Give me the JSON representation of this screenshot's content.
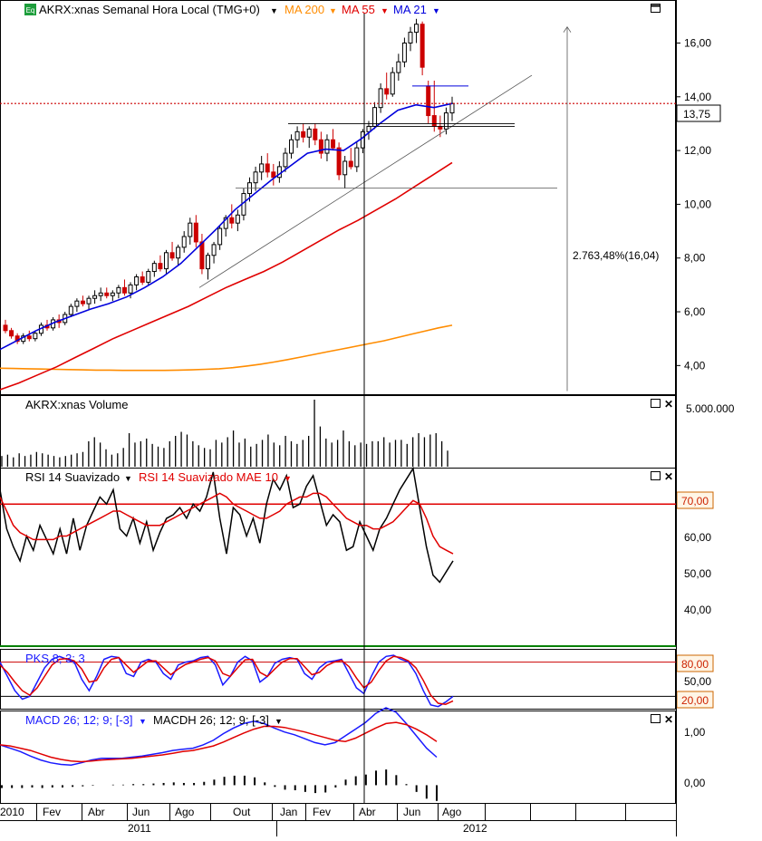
{
  "colors": {
    "price_up": "#000000",
    "price_down": "#cc0000",
    "ma200": "#ff8c00",
    "ma55": "#e00000",
    "ma21": "#0000dd",
    "rsi": "#000000",
    "rsi_ma": "#e00000",
    "macd": "#1a1aff",
    "signal": "#e00000",
    "badge_bg": "#fff5e6",
    "badge_border": "#cc6600",
    "badge_text": "#cc2200",
    "grid": "#000000"
  },
  "panels": {
    "price": {
      "symbol_badge": "Eq",
      "title": "AKRX:xnas Semanal Hora Local (TMG+0)",
      "legend": [
        {
          "label": "MA 200",
          "color": "#ff8c00"
        },
        {
          "label": "MA 55",
          "color": "#e00000"
        },
        {
          "label": "MA 21",
          "color": "#0000dd"
        }
      ],
      "y_ticks": [
        "16,00",
        "14,00",
        "12,00",
        "10,00",
        "8,00",
        "6,00",
        "4,00"
      ],
      "last_price": "13,75",
      "annotation": "2.763,48%(16,04)"
    },
    "volume": {
      "title": "AKRX:xnas Volume",
      "y_ticks": [
        "5.000.000"
      ]
    },
    "rsi": {
      "title": "RSI 14 Suavizado",
      "ma_title": "RSI 14 Suavizado MAE 10",
      "y_ticks": [
        "60,00",
        "50,00",
        "40,00"
      ],
      "level_badge": "70,00"
    },
    "stoch": {
      "title": "PKS 8; 3; 3",
      "y_ticks": [
        "50,00"
      ],
      "upper_badge": "80,00",
      "lower_badge": "20,00"
    },
    "macd": {
      "title": "MACD 26; 12; 9; [-3]",
      "hist_title": "MACDH 26; 12; 9; [-3]",
      "y_ticks": [
        "1,00",
        "0,00"
      ]
    }
  },
  "time_axis": {
    "months": [
      "2010",
      "Fev",
      "Abr",
      "Jun",
      "Ago",
      "Out",
      "Jan",
      "Fev",
      "Abr",
      "Jun",
      "Ago"
    ],
    "years": [
      "2011",
      "2012"
    ]
  },
  "chart_data": {
    "type": "line",
    "frequency": "weekly",
    "price_ylim": [
      3.0,
      17.5
    ],
    "last_price": 13.75,
    "ohlc_approx": [
      [
        5.5,
        5.7,
        5.2,
        5.3
      ],
      [
        5.3,
        5.4,
        5.0,
        5.1
      ],
      [
        5.1,
        5.2,
        4.8,
        4.9
      ],
      [
        4.9,
        5.2,
        4.8,
        5.1
      ],
      [
        5.1,
        5.3,
        4.9,
        5.0
      ],
      [
        5.0,
        5.3,
        4.9,
        5.2
      ],
      [
        5.2,
        5.6,
        5.1,
        5.5
      ],
      [
        5.5,
        5.7,
        5.3,
        5.4
      ],
      [
        5.4,
        5.8,
        5.3,
        5.7
      ],
      [
        5.7,
        5.9,
        5.4,
        5.6
      ],
      [
        5.6,
        6.0,
        5.5,
        5.9
      ],
      [
        5.9,
        6.3,
        5.8,
        6.2
      ],
      [
        6.2,
        6.5,
        6.0,
        6.4
      ],
      [
        6.4,
        6.6,
        6.2,
        6.3
      ],
      [
        6.3,
        6.6,
        6.1,
        6.5
      ],
      [
        6.5,
        6.8,
        6.3,
        6.6
      ],
      [
        6.6,
        6.9,
        6.4,
        6.7
      ],
      [
        6.7,
        6.9,
        6.5,
        6.6
      ],
      [
        6.6,
        6.8,
        6.4,
        6.7
      ],
      [
        6.7,
        7.0,
        6.5,
        6.9
      ],
      [
        6.9,
        7.2,
        6.6,
        6.7
      ],
      [
        6.7,
        7.1,
        6.5,
        7.0
      ],
      [
        7.0,
        7.4,
        6.8,
        7.3
      ],
      [
        7.3,
        7.5,
        7.0,
        7.1
      ],
      [
        7.1,
        7.6,
        7.0,
        7.5
      ],
      [
        7.5,
        7.9,
        7.3,
        7.8
      ],
      [
        7.8,
        8.1,
        7.5,
        7.6
      ],
      [
        7.6,
        8.3,
        7.4,
        8.2
      ],
      [
        8.2,
        8.6,
        7.9,
        8.0
      ],
      [
        8.0,
        8.5,
        7.7,
        8.4
      ],
      [
        8.4,
        9.0,
        8.2,
        8.8
      ],
      [
        8.8,
        9.5,
        8.5,
        9.3
      ],
      [
        9.3,
        9.6,
        8.4,
        8.6
      ],
      [
        8.6,
        8.9,
        7.4,
        7.6
      ],
      [
        7.6,
        8.2,
        7.2,
        8.1
      ],
      [
        8.1,
        8.6,
        7.8,
        8.5
      ],
      [
        8.5,
        9.2,
        8.3,
        9.1
      ],
      [
        9.1,
        9.6,
        8.8,
        9.5
      ],
      [
        9.5,
        10.0,
        9.1,
        9.3
      ],
      [
        9.3,
        9.8,
        9.0,
        9.6
      ],
      [
        9.6,
        10.6,
        9.4,
        10.4
      ],
      [
        10.4,
        11.0,
        10.1,
        10.8
      ],
      [
        10.8,
        11.4,
        10.5,
        11.2
      ],
      [
        11.2,
        11.8,
        10.9,
        11.5
      ],
      [
        11.5,
        11.9,
        11.0,
        11.2
      ],
      [
        11.2,
        11.5,
        10.7,
        11.0
      ],
      [
        11.0,
        11.6,
        10.8,
        11.4
      ],
      [
        11.4,
        12.1,
        11.2,
        11.9
      ],
      [
        11.9,
        12.6,
        11.7,
        12.4
      ],
      [
        12.4,
        12.9,
        12.1,
        12.7
      ],
      [
        12.7,
        13.0,
        12.3,
        12.5
      ],
      [
        12.5,
        12.9,
        12.1,
        12.8
      ],
      [
        12.8,
        13.0,
        12.2,
        12.4
      ],
      [
        12.4,
        12.7,
        11.7,
        11.9
      ],
      [
        11.9,
        12.6,
        11.6,
        12.4
      ],
      [
        12.4,
        12.8,
        12.0,
        12.1
      ],
      [
        12.1,
        12.3,
        10.9,
        11.1
      ],
      [
        11.1,
        11.8,
        10.6,
        11.6
      ],
      [
        11.6,
        12.1,
        11.3,
        11.4
      ],
      [
        11.4,
        12.3,
        11.2,
        12.1
      ],
      [
        12.1,
        12.8,
        11.9,
        12.7
      ],
      [
        12.7,
        13.1,
        12.4,
        12.9
      ],
      [
        12.9,
        13.8,
        12.8,
        13.6
      ],
      [
        13.6,
        14.5,
        13.4,
        14.3
      ],
      [
        14.3,
        14.9,
        13.9,
        14.1
      ],
      [
        14.1,
        15.1,
        14.0,
        14.9
      ],
      [
        14.9,
        15.6,
        14.6,
        15.3
      ],
      [
        15.3,
        16.2,
        15.1,
        16.0
      ],
      [
        16.0,
        16.6,
        15.7,
        16.4
      ],
      [
        16.4,
        16.9,
        16.0,
        16.7
      ],
      [
        16.7,
        16.8,
        14.8,
        15.1
      ],
      [
        14.4,
        14.6,
        13.0,
        13.3
      ],
      [
        13.3,
        14.6,
        12.7,
        12.9
      ],
      [
        12.9,
        13.3,
        12.5,
        12.8
      ],
      [
        12.8,
        13.6,
        12.6,
        13.4
      ],
      [
        13.4,
        14.0,
        13.1,
        13.75
      ]
    ],
    "series": [
      {
        "name": "MA 200",
        "values": [
          3.9,
          3.89,
          3.88,
          3.87,
          3.86,
          3.85,
          3.84,
          3.83,
          3.83,
          3.82,
          3.82,
          3.82,
          3.82,
          3.83,
          3.84,
          3.86,
          3.88,
          3.92,
          3.98,
          4.05,
          4.13,
          4.22,
          4.32,
          4.42,
          4.52,
          4.62,
          4.72,
          4.82,
          4.92,
          5.04,
          5.16,
          5.28,
          5.4,
          5.5
        ]
      },
      {
        "name": "MA 55",
        "values": [
          3.1,
          3.35,
          3.65,
          3.95,
          4.3,
          4.65,
          5.0,
          5.3,
          5.6,
          5.9,
          6.2,
          6.55,
          6.9,
          7.2,
          7.5,
          7.85,
          8.25,
          8.65,
          9.05,
          9.4,
          9.8,
          10.2,
          10.65,
          11.1,
          11.55
        ]
      },
      {
        "name": "MA 21",
        "values": [
          4.6,
          4.95,
          5.3,
          5.6,
          5.85,
          6.1,
          6.3,
          6.55,
          6.9,
          7.3,
          7.8,
          8.45,
          9.1,
          9.8,
          10.35,
          10.9,
          11.4,
          11.9,
          12.05,
          12.0,
          12.45,
          13.0,
          13.5,
          13.7,
          13.6,
          13.75
        ]
      }
    ],
    "lines": {
      "resistance_1": 13.0,
      "resistance_2": 12.9,
      "support": 10.6,
      "red_dotted_level": 13.75,
      "blue_level": 14.4
    },
    "annotation_pct": 2763.48,
    "annotation_value": 16.04,
    "volume": {
      "ymax": 5000000,
      "values": [
        800000,
        900000,
        700000,
        1000000,
        800000,
        900000,
        1100000,
        1000000,
        900000,
        800000,
        700000,
        800000,
        900000,
        1000000,
        1100000,
        1900000,
        2200000,
        1800000,
        1300000,
        900000,
        1000000,
        1400000,
        2500000,
        1800000,
        1900000,
        2100000,
        1700000,
        1500000,
        1400000,
        1900000,
        2300000,
        2600000,
        2400000,
        1900000,
        1600000,
        1400000,
        1300000,
        2000000,
        1800000,
        2200000,
        2700000,
        1800000,
        2100000,
        1500000,
        1700000,
        2000000,
        2400000,
        1800000,
        1600000,
        2300000,
        1900000,
        1700000,
        2000000,
        2300000,
        5000000,
        3000000,
        2100000,
        1800000,
        2000000,
        2700000,
        1900000,
        1600000,
        1800000,
        1700000,
        1900000,
        1900000,
        2200000,
        1800000,
        2000000,
        2000000,
        1700000,
        2200000,
        2500000,
        2200000,
        2400000,
        2500000,
        1900000,
        1200000
      ]
    },
    "rsi": {
      "ylim": [
        30,
        80
      ],
      "level": 70,
      "values": [
        74,
        63,
        58,
        54,
        61,
        57,
        64,
        60,
        56,
        63,
        56,
        66,
        57,
        64,
        68,
        72,
        70,
        74,
        63,
        61,
        66,
        59,
        65,
        57,
        62,
        66,
        67,
        69,
        66,
        70,
        68,
        72,
        79,
        66,
        56,
        69,
        67,
        61,
        66,
        59,
        70,
        77,
        74,
        78,
        69,
        70,
        75,
        78,
        71,
        64,
        67,
        65,
        57,
        58,
        65,
        61,
        57,
        63,
        66,
        70,
        74,
        77,
        80,
        69,
        58,
        50,
        48,
        51,
        54
      ],
      "ma_values": [
        72,
        68,
        64,
        62,
        61,
        60,
        60,
        60,
        60,
        61,
        61,
        62,
        63,
        64,
        65,
        66,
        67,
        68,
        68,
        67,
        66,
        65,
        64,
        64,
        64,
        65,
        66,
        67,
        68,
        69,
        70,
        71,
        72,
        73,
        72,
        70,
        69,
        68,
        67,
        66,
        66,
        67,
        68,
        70,
        71,
        72,
        72,
        73,
        73,
        72,
        70,
        68,
        66,
        65,
        64,
        64,
        63,
        63,
        64,
        65,
        67,
        69,
        71,
        70,
        66,
        61,
        58,
        57,
        56
      ]
    },
    "stochastic": {
      "ylim": [
        0,
        100
      ],
      "levels": [
        80,
        20
      ],
      "k": [
        80,
        55,
        30,
        15,
        20,
        45,
        70,
        85,
        90,
        85,
        80,
        50,
        30,
        55,
        85,
        90,
        88,
        60,
        55,
        80,
        85,
        80,
        60,
        50,
        75,
        80,
        82,
        88,
        90,
        75,
        40,
        55,
        80,
        90,
        82,
        45,
        55,
        78,
        85,
        88,
        85,
        60,
        50,
        70,
        80,
        82,
        85,
        60,
        35,
        25,
        55,
        80,
        90,
        92,
        85,
        80,
        60,
        30,
        5,
        2,
        10,
        20
      ],
      "d": [
        75,
        62,
        45,
        30,
        22,
        35,
        55,
        75,
        85,
        86,
        82,
        68,
        45,
        48,
        70,
        85,
        88,
        75,
        62,
        72,
        82,
        82,
        70,
        58,
        68,
        76,
        80,
        85,
        88,
        82,
        60,
        55,
        70,
        84,
        85,
        62,
        55,
        68,
        80,
        86,
        86,
        72,
        58,
        62,
        74,
        80,
        83,
        72,
        52,
        35,
        45,
        65,
        82,
        90,
        88,
        82,
        70,
        48,
        22,
        8,
        6,
        12
      ]
    },
    "macd": {
      "ylim": [
        -0.3,
        1.3
      ],
      "macd_values": [
        0.72,
        0.66,
        0.6,
        0.52,
        0.45,
        0.4,
        0.37,
        0.36,
        0.4,
        0.45,
        0.48,
        0.48,
        0.48,
        0.5,
        0.52,
        0.55,
        0.58,
        0.62,
        0.64,
        0.66,
        0.72,
        0.8,
        0.92,
        1.02,
        1.1,
        1.14,
        1.1,
        1.02,
        0.95,
        0.9,
        0.83,
        0.76,
        0.72,
        0.76,
        0.88,
        1.0,
        1.12,
        1.28,
        1.38,
        1.3,
        1.1,
        0.88,
        0.66,
        0.5
      ],
      "signal_values": [
        0.72,
        0.7,
        0.66,
        0.62,
        0.56,
        0.5,
        0.46,
        0.43,
        0.42,
        0.43,
        0.45,
        0.46,
        0.47,
        0.48,
        0.5,
        0.52,
        0.54,
        0.57,
        0.6,
        0.62,
        0.66,
        0.7,
        0.77,
        0.85,
        0.93,
        1.0,
        1.05,
        1.05,
        1.03,
        0.99,
        0.95,
        0.9,
        0.85,
        0.8,
        0.78,
        0.84,
        0.93,
        1.02,
        1.1,
        1.12,
        1.08,
        1.0,
        0.9,
        0.78
      ],
      "hist_values": [
        -0.05,
        -0.05,
        -0.05,
        -0.04,
        -0.05,
        -0.04,
        -0.04,
        -0.03,
        -0.02,
        -0.01,
        0.0,
        0.01,
        0.01,
        0.02,
        0.02,
        0.03,
        0.04,
        0.05,
        0.04,
        0.04,
        0.06,
        0.1,
        0.15,
        0.17,
        0.17,
        0.14,
        0.05,
        -0.03,
        -0.08,
        -0.09,
        -0.12,
        -0.14,
        -0.13,
        -0.04,
        0.1,
        0.16,
        0.19,
        0.26,
        0.28,
        0.18,
        0.02,
        -0.12,
        -0.24,
        -0.28
      ]
    },
    "crosshair_date": "Abr 2012"
  }
}
